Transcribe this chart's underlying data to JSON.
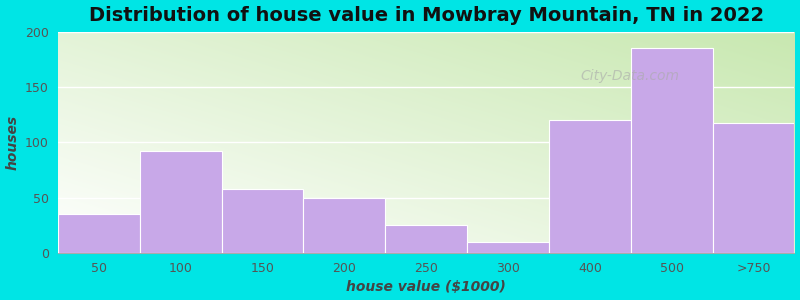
{
  "categories": [
    "50",
    "100",
    "150",
    "200",
    "250",
    "300",
    "400",
    "500",
    ">750"
  ],
  "values": [
    35,
    92,
    58,
    50,
    25,
    10,
    120,
    185,
    117
  ],
  "bin_lefts": [
    0,
    1,
    2,
    3,
    4,
    5,
    6,
    7,
    8
  ],
  "bar_color": "#c8a8e8",
  "title": "Distribution of house value in Mowbray Mountain, TN in 2022",
  "xlabel": "house value ($1000)",
  "ylabel": "houses",
  "ylim": [
    0,
    200
  ],
  "yticks": [
    0,
    50,
    100,
    150,
    200
  ],
  "background_color": "#00e5e5",
  "plot_bg_top_left": "#c8e8b0",
  "plot_bg_bottom_right": "#ffffff",
  "title_fontsize": 14,
  "axis_label_fontsize": 10,
  "tick_fontsize": 9,
  "watermark_text": "City-Data.com"
}
